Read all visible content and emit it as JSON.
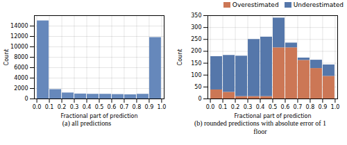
{
  "chart_data": [
    {
      "type": "histogram",
      "bins": [
        0.0,
        0.1,
        0.2,
        0.3,
        0.4,
        0.5,
        0.6,
        0.7,
        0.8,
        0.9,
        1.0
      ],
      "values": [
        15000,
        1800,
        1150,
        950,
        900,
        900,
        850,
        800,
        900,
        11800
      ],
      "color": "#6688bb",
      "xlabel": "Fractional part of prediction",
      "ylabel": "Count",
      "caption": "(a)  all predictions",
      "xlim": [
        -0.02,
        1.02
      ],
      "ylim": [
        0,
        16000
      ],
      "xticks": [
        {
          "value": 0.0,
          "label": "0.0"
        },
        0.1,
        0.2,
        0.3,
        0.4,
        0.5,
        0.6,
        0.7,
        0.8,
        0.9,
        {
          "value": 1.0,
          "label": "1.0"
        }
      ],
      "yticks": [
        0,
        2000,
        4000,
        6000,
        8000,
        10000,
        12000,
        14000
      ],
      "grid": true
    },
    {
      "type": "histogram",
      "stacked": true,
      "bins": [
        0.0,
        0.1,
        0.2,
        0.3,
        0.4,
        0.5,
        0.6,
        0.7,
        0.8,
        0.9,
        1.0
      ],
      "series": [
        {
          "name": "Overestimated",
          "color": "#cc7755",
          "values": [
            38,
            28,
            10,
            10,
            10,
            215,
            215,
            162,
            128,
            95
          ]
        },
        {
          "name": "Underestimated",
          "color": "#5577aa",
          "values": [
            140,
            155,
            170,
            240,
            250,
            125,
            20,
            10,
            35,
            48
          ]
        }
      ],
      "xlabel": "Fractional part of prediction",
      "ylabel": "Count",
      "caption": "(b) rounded predictions with absolute error of 1\nfloor",
      "xlim": [
        -0.02,
        1.02
      ],
      "ylim": [
        0,
        350
      ],
      "xticks": [
        {
          "value": 0.0,
          "label": "0.0"
        },
        0.1,
        0.2,
        0.3,
        0.4,
        0.5,
        0.6,
        0.7,
        0.8,
        0.9,
        {
          "value": 1.0,
          "label": "1.0"
        }
      ],
      "yticks": [
        0,
        50,
        100,
        150,
        200,
        250,
        300,
        350
      ],
      "grid": true,
      "legend": "upper right"
    }
  ]
}
